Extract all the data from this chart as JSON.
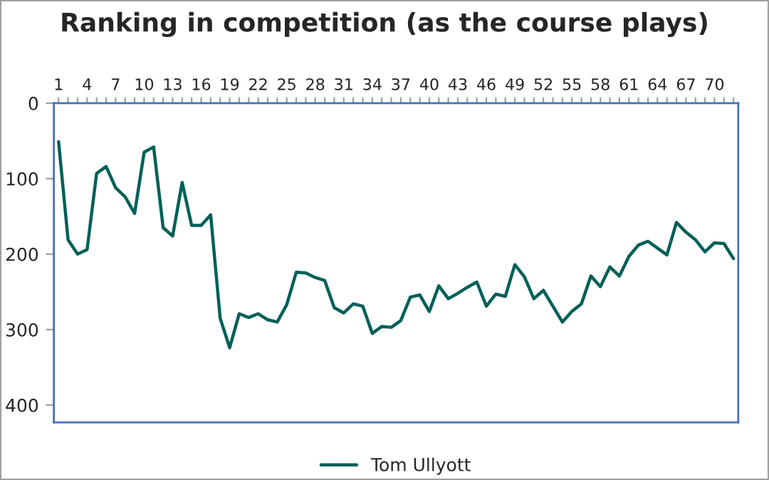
{
  "chart_data": {
    "type": "line",
    "title": "Ranking in competition (as the course plays)",
    "categories": [
      "1",
      null,
      null,
      "4",
      null,
      null,
      "7",
      null,
      null,
      "10",
      null,
      null,
      "13",
      null,
      null,
      "16",
      null,
      null,
      "19",
      null,
      null,
      "22",
      null,
      null,
      "25",
      null,
      null,
      "28",
      null,
      null,
      "31",
      null,
      null,
      "34",
      null,
      null,
      "37",
      null,
      null,
      "40",
      null,
      null,
      "43",
      null,
      null,
      "46",
      null,
      null,
      "49",
      null,
      null,
      "52",
      null,
      null,
      "55",
      null,
      null,
      "58",
      null,
      null,
      "61",
      null,
      null,
      "64",
      null,
      null,
      "67",
      null,
      null,
      "70",
      null,
      null
    ],
    "series": [
      {
        "name": "Tom Ullyott",
        "color": "#006058",
        "values": [
          51,
          181,
          200,
          194,
          93,
          84,
          112,
          124,
          146,
          65,
          58,
          165,
          176,
          105,
          162,
          162,
          148,
          285,
          324,
          279,
          284,
          279,
          287,
          290,
          267,
          224,
          225,
          231,
          235,
          271,
          278,
          266,
          269,
          305,
          296,
          297,
          288,
          257,
          254,
          276,
          242,
          259,
          252,
          244,
          237,
          269,
          253,
          256,
          214,
          230,
          259,
          248,
          269,
          290,
          276,
          266,
          229,
          243,
          217,
          229,
          203,
          188,
          183,
          192,
          201,
          158,
          171,
          181,
          197,
          185,
          186,
          206
        ]
      }
    ],
    "ylim": [
      423,
      0
    ],
    "yticks": [
      0,
      100,
      200,
      300,
      400
    ],
    "grid": false,
    "legend": "bottom",
    "marker": "none",
    "line_style": "solid"
  }
}
